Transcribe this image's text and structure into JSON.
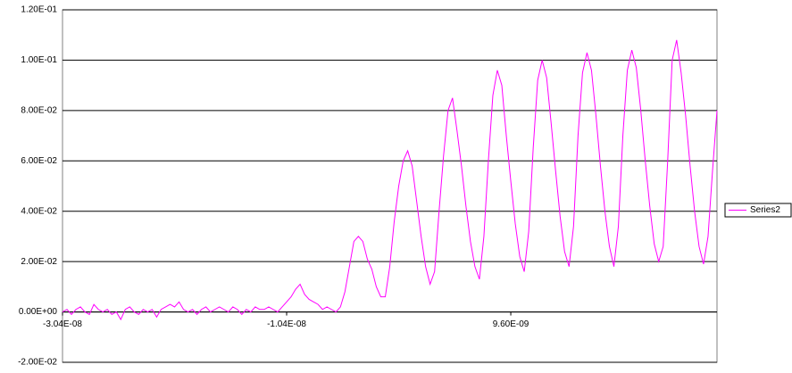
{
  "chart_data": {
    "type": "line",
    "x": [
      -3.04e-08,
      -3e-08,
      -2.96e-08,
      -2.92e-08,
      -2.88e-08,
      -2.84e-08,
      -2.8e-08,
      -2.76e-08,
      -2.72e-08,
      -2.68e-08,
      -2.64e-08,
      -2.6e-08,
      -2.56e-08,
      -2.52e-08,
      -2.48e-08,
      -2.44e-08,
      -2.4e-08,
      -2.36e-08,
      -2.32e-08,
      -2.28e-08,
      -2.24e-08,
      -2.2e-08,
      -2.16e-08,
      -2.12e-08,
      -2.08e-08,
      -2.04e-08,
      -2e-08,
      -1.96e-08,
      -1.92e-08,
      -1.88e-08,
      -1.84e-08,
      -1.8e-08,
      -1.76e-08,
      -1.72e-08,
      -1.68e-08,
      -1.64e-08,
      -1.6e-08,
      -1.56e-08,
      -1.52e-08,
      -1.48e-08,
      -1.44e-08,
      -1.4e-08,
      -1.36e-08,
      -1.32e-08,
      -1.28e-08,
      -1.24e-08,
      -1.2e-08,
      -1.16e-08,
      -1.12e-08,
      -1.08e-08,
      -1.04e-08,
      -1e-08,
      -9.6e-09,
      -9.2e-09,
      -8.8e-09,
      -8.4e-09,
      -8e-09,
      -7.6e-09,
      -7.2e-09,
      -6.8e-09,
      -6.4e-09,
      -6e-09,
      -5.6e-09,
      -5.2e-09,
      -4.8e-09,
      -4.4e-09,
      -4e-09,
      -3.6e-09,
      -3.2e-09,
      -2.8e-09,
      -2.4e-09,
      -2e-09,
      -1.6e-09,
      -1.2e-09,
      -8e-10,
      -4e-10,
      0,
      4e-10,
      8e-10,
      1.2e-09,
      1.6e-09,
      2e-09,
      2.4e-09,
      2.8e-09,
      3.2e-09,
      3.6e-09,
      4e-09,
      4.4e-09,
      4.8e-09,
      5.2e-09,
      5.6e-09,
      6e-09,
      6.4e-09,
      6.8e-09,
      7.2e-09,
      7.6e-09,
      8e-09,
      8.4e-09,
      8.8e-09,
      9.2e-09,
      9.6e-09,
      1e-08,
      1.04e-08,
      1.08e-08,
      1.12e-08,
      1.16e-08,
      1.2e-08,
      1.24e-08,
      1.28e-08,
      1.32e-08,
      1.36e-08,
      1.4e-08,
      1.44e-08,
      1.48e-08,
      1.52e-08,
      1.56e-08,
      1.6e-08,
      1.64e-08,
      1.68e-08,
      1.72e-08,
      1.76e-08,
      1.8e-08,
      1.84e-08,
      1.88e-08,
      1.92e-08,
      1.96e-08,
      2e-08,
      2.04e-08,
      2.08e-08,
      2.12e-08,
      2.16e-08,
      2.2e-08,
      2.24e-08,
      2.28e-08,
      2.32e-08,
      2.36e-08,
      2.4e-08,
      2.44e-08,
      2.48e-08,
      2.52e-08,
      2.56e-08,
      2.6e-08,
      2.64e-08,
      2.68e-08,
      2.72e-08,
      2.76e-08,
      2.8e-08
    ],
    "series": [
      {
        "name": "Series2",
        "color": "#ff00ff",
        "values": [
          0,
          0.001,
          -0.001,
          0.001,
          0.002,
          0,
          -0.001,
          0.003,
          0.001,
          0,
          0.001,
          -0.001,
          0,
          -0.003,
          0.001,
          0.002,
          0,
          -0.001,
          0.001,
          0,
          0.001,
          -0.002,
          0.001,
          0.002,
          0.003,
          0.002,
          0.004,
          0.001,
          0,
          0.001,
          -0.001,
          0.001,
          0.002,
          0,
          0.001,
          0.002,
          0.001,
          0,
          0.002,
          0.001,
          -0.001,
          0.001,
          0,
          0.002,
          0.001,
          0.001,
          0.002,
          0.001,
          0,
          0.002,
          0.004,
          0.006,
          0.009,
          0.011,
          0.007,
          0.005,
          0.004,
          0.003,
          0.001,
          0.002,
          0.001,
          0,
          0.002,
          0.008,
          0.018,
          0.028,
          0.03,
          0.028,
          0.021,
          0.017,
          0.01,
          0.006,
          0.006,
          0.018,
          0.036,
          0.05,
          0.06,
          0.064,
          0.058,
          0.044,
          0.03,
          0.018,
          0.011,
          0.016,
          0.04,
          0.062,
          0.08,
          0.085,
          0.072,
          0.058,
          0.042,
          0.028,
          0.018,
          0.013,
          0.03,
          0.06,
          0.086,
          0.096,
          0.09,
          0.07,
          0.052,
          0.035,
          0.022,
          0.016,
          0.032,
          0.065,
          0.092,
          0.1,
          0.093,
          0.075,
          0.056,
          0.038,
          0.024,
          0.018,
          0.034,
          0.07,
          0.095,
          0.103,
          0.096,
          0.078,
          0.058,
          0.04,
          0.026,
          0.018,
          0.034,
          0.07,
          0.096,
          0.104,
          0.097,
          0.08,
          0.06,
          0.042,
          0.027,
          0.02,
          0.026,
          0.06,
          0.1,
          0.108,
          0.095,
          0.078,
          0.058,
          0.04,
          0.026,
          0.019,
          0.03,
          0.056,
          0.08
        ]
      }
    ],
    "xlim": [
      -3.04e-08,
      2.8e-08
    ],
    "xticks": [
      {
        "value": -3.04e-08,
        "label": "-3.04E-08"
      },
      {
        "value": -1.04e-08,
        "label": "-1.04E-08"
      },
      {
        "value": 9.6e-09,
        "label": "9.60E-09"
      }
    ],
    "ylim": [
      -0.02,
      0.12
    ],
    "yticks": [
      {
        "value": -0.02,
        "label": "-2.00E-02"
      },
      {
        "value": 0,
        "label": "0.00E+00"
      },
      {
        "value": 0.02,
        "label": "2.00E-02"
      },
      {
        "value": 0.04,
        "label": "4.00E-02"
      },
      {
        "value": 0.06,
        "label": "6.00E-02"
      },
      {
        "value": 0.08,
        "label": "8.00E-02"
      },
      {
        "value": 0.1,
        "label": "1.00E-01"
      },
      {
        "value": 0.12,
        "label": "1.20E-01"
      }
    ],
    "grid": true,
    "legend": "right"
  }
}
